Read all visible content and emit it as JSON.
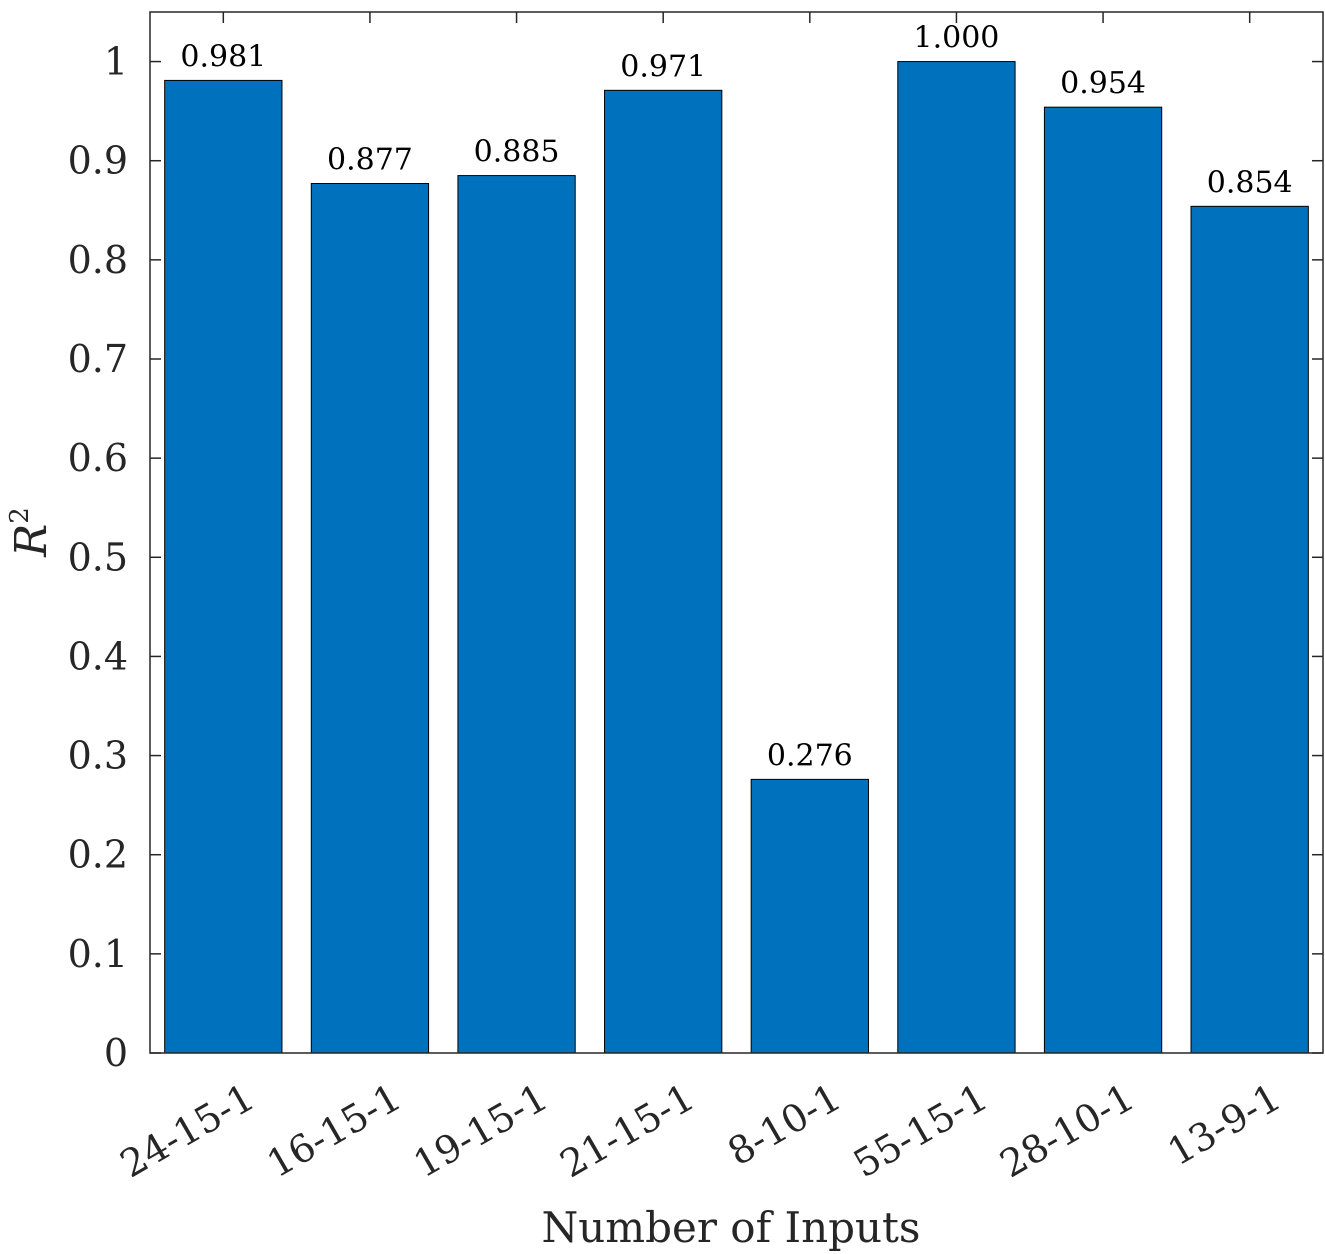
{
  "chart_data": {
    "type": "bar",
    "categories": [
      "24-15-1",
      "16-15-1",
      "19-15-1",
      "21-15-1",
      "8-10-1",
      "55-15-1",
      "28-10-1",
      "13-9-1"
    ],
    "values": [
      0.981,
      0.877,
      0.885,
      0.971,
      0.276,
      1.0,
      0.954,
      0.854
    ],
    "data_labels": [
      "0.981",
      "0.877",
      "0.885",
      "0.971",
      "0.276",
      "1.000",
      "0.954",
      "0.854"
    ],
    "xlabel": "Number of Inputs",
    "ylabel": "R",
    "ylabel_superscript": "2",
    "ylim": [
      0,
      1.05
    ],
    "yticks": [
      "0",
      "0.1",
      "0.2",
      "0.3",
      "0.4",
      "0.5",
      "0.6",
      "0.7",
      "0.8",
      "0.9",
      "1"
    ],
    "ytick_values": [
      0,
      0.1,
      0.2,
      0.3,
      0.4,
      0.5,
      0.6,
      0.7,
      0.8,
      0.9,
      1
    ],
    "grid": false,
    "bar_color": "#0072BD",
    "edge_color": "#000000"
  }
}
